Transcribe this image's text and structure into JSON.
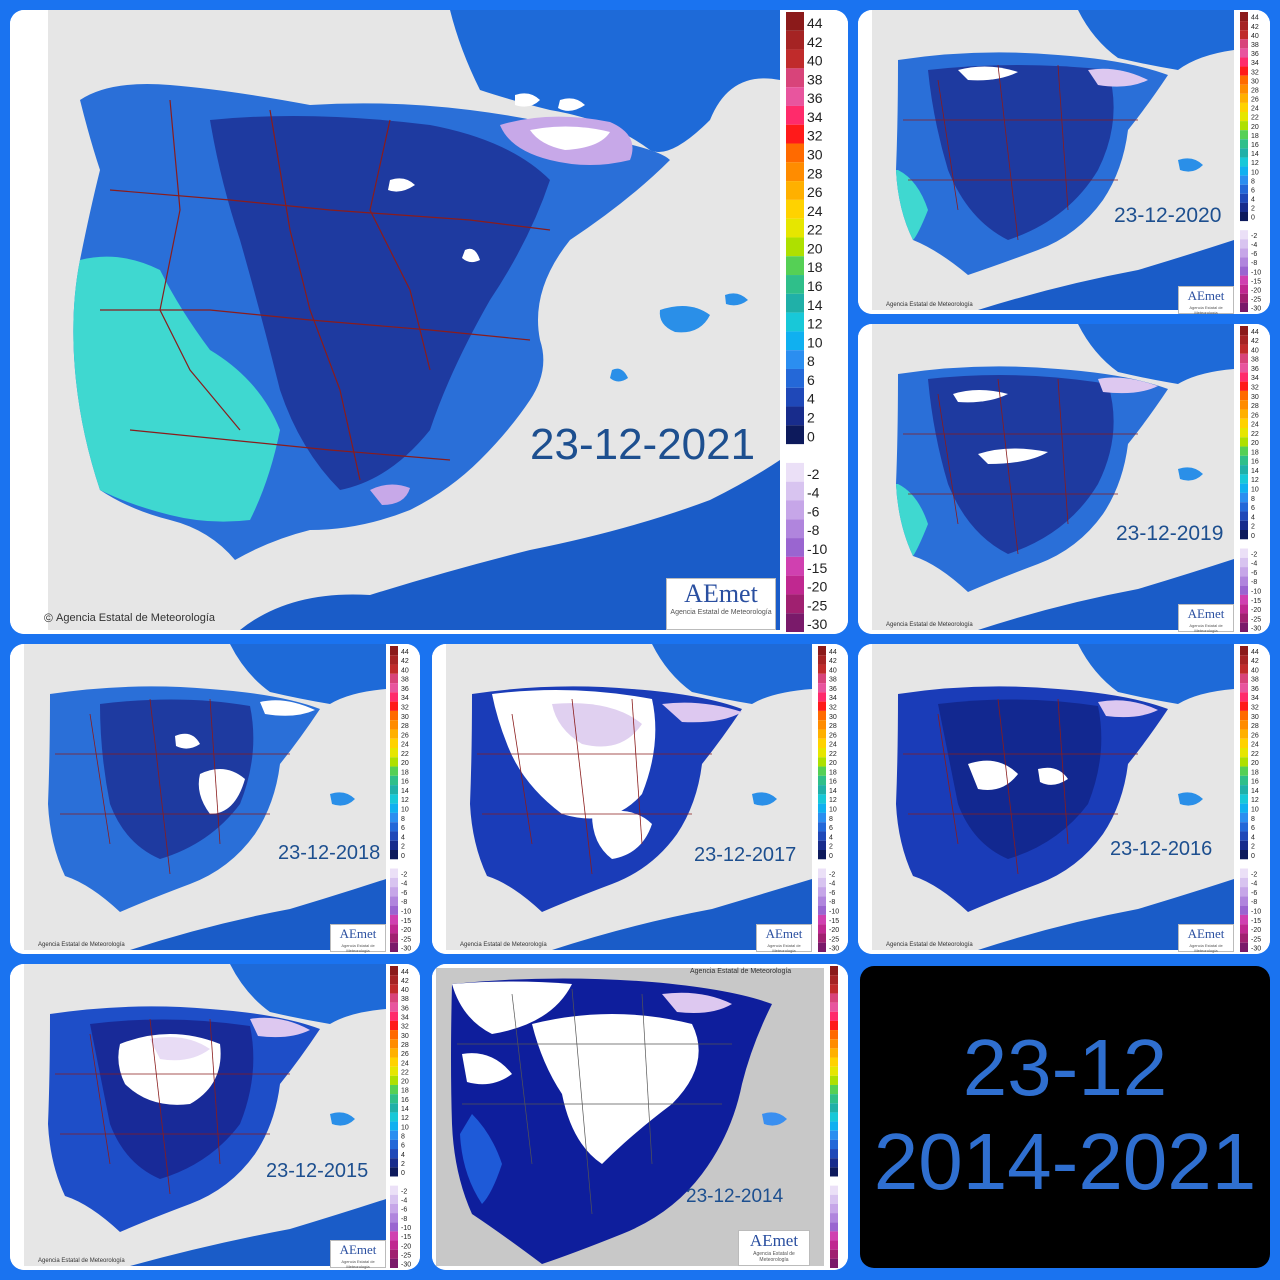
{
  "credit": "Agencia Estatal de Meteorología",
  "logo": {
    "text": "AEmet",
    "subtitle": "Agencia Estatal de Meteorología"
  },
  "legend": {
    "positive_ticks": [
      "44",
      "42",
      "40",
      "38",
      "36",
      "34",
      "32",
      "30",
      "28",
      "26",
      "24",
      "22",
      "20",
      "18",
      "16",
      "14",
      "12",
      "10",
      "8",
      "6",
      "4",
      "2",
      "0"
    ],
    "negative_ticks": [
      "-2",
      "-4",
      "-6",
      "-8",
      "-10",
      "-15",
      "-20",
      "-25",
      "-30"
    ],
    "positive_colors": [
      "#8b1a1a",
      "#a52323",
      "#c02b2b",
      "#d8447a",
      "#e8559e",
      "#ff2b6b",
      "#ff1a1a",
      "#ff6a00",
      "#ff8c00",
      "#ffb000",
      "#ffd200",
      "#e6e600",
      "#aee000",
      "#55d055",
      "#2fbf8a",
      "#20b0a8",
      "#18c8d8",
      "#10b0f0",
      "#2b8ef0",
      "#2468d8",
      "#1f48b8",
      "#182c8c",
      "#0d1a5c"
    ],
    "negative_colors": [
      "#ebe0f7",
      "#d8c4f0",
      "#c6a6e8",
      "#b085dd",
      "#9a65d0",
      "#d040b0",
      "#c02890",
      "#a02070",
      "#7a1a6a"
    ],
    "colors": {
      "ocean_cold": "#1a7ce0",
      "land_warm": "#3fd8d0",
      "land_mid": "#2a6fd8",
      "land_cold": "#1e3aa0",
      "frost": "#ffffff",
      "frost_violet": "#c7a8e8",
      "sea_gray": "#e8e8e8",
      "border": "#8a1c1c"
    }
  },
  "maps": [
    {
      "id": "2021",
      "date": "23-12-2021"
    },
    {
      "id": "2020",
      "date": "23-12-2020"
    },
    {
      "id": "2019",
      "date": "23-12-2019"
    },
    {
      "id": "2018",
      "date": "23-12-2018"
    },
    {
      "id": "2017",
      "date": "23-12-2017"
    },
    {
      "id": "2016",
      "date": "23-12-2016"
    },
    {
      "id": "2015",
      "date": "23-12-2015"
    },
    {
      "id": "2014",
      "date": "23-12-2014"
    }
  ],
  "summary": {
    "line1": "23-12",
    "line2": "2014-2021"
  }
}
